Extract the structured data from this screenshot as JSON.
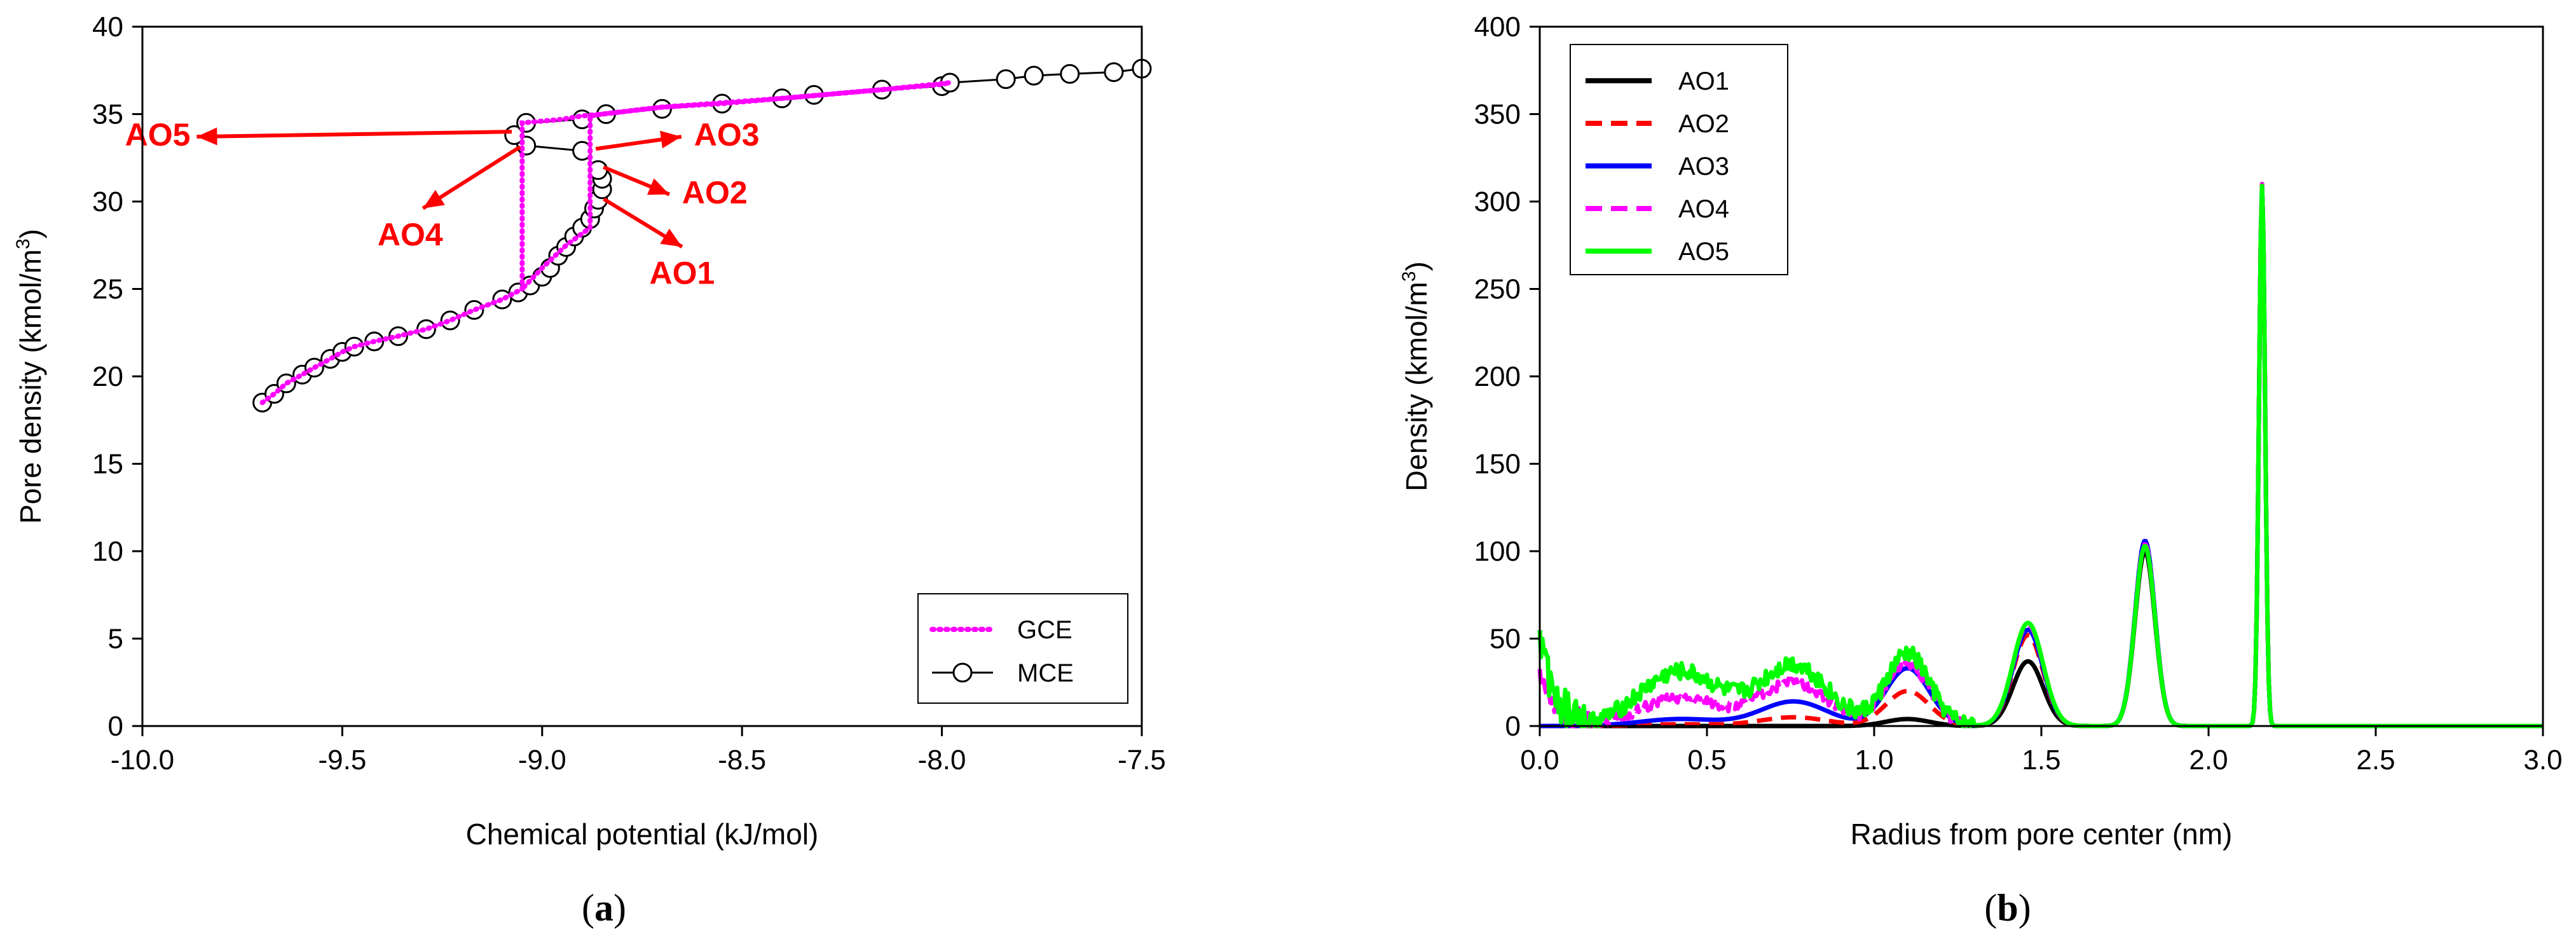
{
  "chart_data": [
    {
      "type": "line",
      "panel": "a",
      "caption_letter": "a",
      "caption_open": "(",
      "caption_close": ")",
      "xlabel": "Chemical potential (kJ/mol)",
      "ylabel_main": "Pore density (kmol/m",
      "ylabel_sup": "3",
      "ylabel_close": ")",
      "xlim": [
        -10.0,
        -7.5
      ],
      "ylim": [
        0,
        40
      ],
      "xticks": [
        -10.0,
        -9.5,
        -9.0,
        -8.5,
        -8.0,
        -7.5
      ],
      "xtick_labels": [
        "-10.0",
        "-9.5",
        "-9.0",
        "-8.5",
        "-8.0",
        "-7.5"
      ],
      "yticks": [
        0,
        5,
        10,
        15,
        20,
        25,
        30,
        35,
        40
      ],
      "ytick_labels": [
        "0",
        "5",
        "10",
        "15",
        "20",
        "25",
        "30",
        "35",
        "40"
      ],
      "legend_position": "bottom-right",
      "series": [
        {
          "name": "GCE",
          "color": "#ff00ff",
          "style": "dotted",
          "points": [
            [
              -9.7,
              18.5
            ],
            [
              -9.67,
              19.0
            ],
            [
              -9.64,
              19.6
            ],
            [
              -9.6,
              20.1
            ],
            [
              -9.57,
              20.5
            ],
            [
              -9.53,
              21.0
            ],
            [
              -9.5,
              21.4
            ],
            [
              -9.47,
              21.7
            ],
            [
              -9.42,
              22.0
            ],
            [
              -9.36,
              22.3
            ],
            [
              -9.29,
              22.7
            ],
            [
              -9.23,
              23.2
            ],
            [
              -9.17,
              23.8
            ],
            [
              -9.1,
              24.4
            ],
            [
              -9.05,
              25.0
            ],
            [
              -9.05,
              34.5
            ],
            [
              -9.05,
              34.5
            ],
            [
              -8.95,
              34.7
            ],
            [
              -8.9,
              34.9
            ],
            [
              -8.85,
              35.0
            ],
            [
              -8.7,
              35.4
            ],
            [
              -8.55,
              35.6
            ],
            [
              -8.4,
              35.9
            ],
            [
              -8.3,
              36.1
            ],
            [
              -8.15,
              36.4
            ],
            [
              -8.0,
              36.7
            ],
            [
              -7.98,
              36.8
            ],
            [
              -7.98,
              36.8
            ],
            [
              -8.15,
              36.4
            ],
            [
              -8.4,
              35.9
            ],
            [
              -8.7,
              35.4
            ],
            [
              -8.85,
              35.0
            ],
            [
              -8.88,
              34.9
            ],
            [
              -8.88,
              28.5
            ],
            [
              -8.88,
              28.5
            ],
            [
              -8.94,
              27.5
            ],
            [
              -9.0,
              26.2
            ],
            [
              -9.05,
              25.0
            ]
          ]
        },
        {
          "name": "MCE",
          "color": "#000000",
          "style": "solid-circle",
          "points": [
            [
              -9.7,
              18.5
            ],
            [
              -9.67,
              19.0
            ],
            [
              -9.64,
              19.6
            ],
            [
              -9.6,
              20.1
            ],
            [
              -9.57,
              20.5
            ],
            [
              -9.53,
              21.0
            ],
            [
              -9.5,
              21.4
            ],
            [
              -9.47,
              21.7
            ],
            [
              -9.42,
              22.0
            ],
            [
              -9.36,
              22.3
            ],
            [
              -9.29,
              22.7
            ],
            [
              -9.23,
              23.2
            ],
            [
              -9.17,
              23.8
            ],
            [
              -9.1,
              24.4
            ],
            [
              -9.06,
              24.8
            ],
            [
              -9.03,
              25.2
            ],
            [
              -9.0,
              25.7
            ],
            [
              -8.98,
              26.2
            ],
            [
              -8.96,
              26.9
            ],
            [
              -8.94,
              27.4
            ],
            [
              -8.92,
              28.0
            ],
            [
              -8.9,
              28.5
            ],
            [
              -8.88,
              29.0
            ],
            [
              -8.87,
              29.6
            ],
            [
              -8.86,
              30.1
            ],
            [
              -8.85,
              30.7
            ],
            [
              -8.85,
              31.3
            ],
            [
              -8.86,
              31.8
            ],
            [
              -8.9,
              32.9
            ],
            [
              -9.04,
              33.2
            ],
            [
              -9.07,
              33.8
            ],
            [
              -9.04,
              34.5
            ],
            [
              -8.9,
              34.7
            ],
            [
              -8.84,
              35.0
            ],
            [
              -8.7,
              35.3
            ],
            [
              -8.55,
              35.6
            ],
            [
              -8.4,
              35.9
            ],
            [
              -8.32,
              36.1
            ],
            [
              -8.15,
              36.4
            ],
            [
              -8.0,
              36.6
            ],
            [
              -7.98,
              36.8
            ],
            [
              -7.84,
              37.0
            ],
            [
              -7.77,
              37.2
            ],
            [
              -7.68,
              37.3
            ],
            [
              -7.57,
              37.4
            ],
            [
              -7.5,
              37.6
            ]
          ]
        }
      ],
      "annotations": [
        {
          "text": "AO5",
          "tip": [
            -9.06,
            34.0
          ],
          "label": [
            -9.88,
            33.2
          ],
          "text_anchor": "end"
        },
        {
          "text": "AO3",
          "tip": [
            -8.87,
            33.0
          ],
          "label": [
            -8.62,
            33.2
          ],
          "text_anchor": "start"
        },
        {
          "text": "AO2",
          "tip": [
            -8.85,
            32.0
          ],
          "label": [
            -8.65,
            29.9
          ],
          "text_anchor": "start"
        },
        {
          "text": "AO4",
          "tip": [
            -9.05,
            33.2
          ],
          "label": [
            -9.33,
            27.5
          ],
          "text_anchor": "middle"
        },
        {
          "text": "AO1",
          "tip": [
            -8.85,
            30.2
          ],
          "label": [
            -8.65,
            25.3
          ],
          "text_anchor": "middle"
        }
      ]
    },
    {
      "type": "line",
      "panel": "b",
      "caption_letter": "b",
      "caption_open": "(",
      "caption_close": ")",
      "xlabel": "Radius from pore center (nm)",
      "ylabel_main": "Density (kmol/m",
      "ylabel_sup": "3",
      "ylabel_close": ")",
      "xlim": [
        0.0,
        3.0
      ],
      "ylim": [
        0,
        400
      ],
      "xticks": [
        0.0,
        0.5,
        1.0,
        1.5,
        2.0,
        2.5,
        3.0
      ],
      "xtick_labels": [
        "0.0",
        "0.5",
        "1.0",
        "1.5",
        "2.0",
        "2.5",
        "3.0"
      ],
      "yticks": [
        0,
        50,
        100,
        150,
        200,
        250,
        300,
        350,
        400
      ],
      "ytick_labels": [
        "0",
        "50",
        "100",
        "150",
        "200",
        "250",
        "300",
        "350",
        "400"
      ],
      "legend_position": "top-left",
      "series": [
        {
          "name": "AO1",
          "color": "#000000",
          "style": "solid",
          "bumps": {
            "0.42": 0,
            "0.76": 0,
            "1.10": 4,
            "1.46": 37,
            "1.81": 100,
            "2.16": 308
          },
          "noise": 0
        },
        {
          "name": "AO2",
          "color": "#ff0000",
          "style": "dashed",
          "bumps": {
            "0.42": 1,
            "0.76": 5,
            "1.10": 20,
            "1.46": 52,
            "1.81": 103,
            "2.16": 310
          },
          "noise": 0
        },
        {
          "name": "AO3",
          "color": "#0000ff",
          "style": "solid",
          "bumps": {
            "0.42": 4,
            "0.76": 14,
            "1.10": 33,
            "1.46": 55,
            "1.81": 106,
            "2.16": 309
          },
          "noise": 0
        },
        {
          "name": "AO4",
          "color": "#ff00ff",
          "style": "dashed",
          "bumps": {
            "0.42": 16,
            "0.76": 25,
            "1.10": 36,
            "1.46": 58,
            "1.81": 104,
            "2.16": 310
          },
          "noise": 6
        },
        {
          "name": "AO5",
          "color": "#00ff00",
          "style": "solid",
          "bumps": {
            "0.42": 31,
            "0.76": 35,
            "1.10": 41,
            "1.46": 59,
            "1.81": 103,
            "2.16": 309
          },
          "noise": 10
        }
      ]
    }
  ]
}
